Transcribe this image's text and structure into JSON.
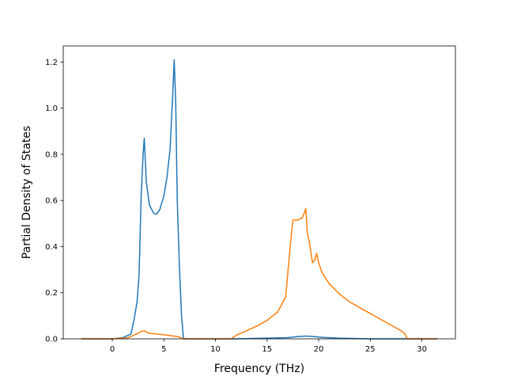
{
  "chart_data": {
    "type": "line",
    "title": "",
    "xlabel": "Frequency (THz)",
    "ylabel": "Partial Density of States",
    "xlim": [
      -4.75,
      33.25
    ],
    "ylim": [
      0,
      1.27
    ],
    "xticks": [
      0,
      5,
      10,
      15,
      20,
      25,
      30
    ],
    "xtick_labels": [
      "0",
      "5",
      "10",
      "15",
      "20",
      "25",
      "30"
    ],
    "yticks": [
      0.0,
      0.2,
      0.4,
      0.6,
      0.8,
      1.0,
      1.2
    ],
    "ytick_labels": [
      "0.0",
      "0.2",
      "0.4",
      "0.6",
      "0.8",
      "1.0",
      "1.2"
    ],
    "grid": false,
    "legend": "none",
    "series": [
      {
        "color": "#1f77b4",
        "x": [
          -3.0,
          0.0,
          1.0,
          1.8,
          2.1,
          2.4,
          2.6,
          2.8,
          3.0,
          3.1,
          3.3,
          3.6,
          4.0,
          4.3,
          4.6,
          5.0,
          5.3,
          5.6,
          5.85,
          6.0,
          6.15,
          6.3,
          6.5,
          6.7,
          6.9,
          8.0,
          12.0,
          15.0,
          17.0,
          18.0,
          18.8,
          19.5,
          20.5,
          22.0,
          25.0,
          28.0,
          31.5
        ],
        "y": [
          0.0,
          0.0,
          0.005,
          0.02,
          0.08,
          0.16,
          0.28,
          0.62,
          0.81,
          0.87,
          0.68,
          0.58,
          0.545,
          0.54,
          0.56,
          0.62,
          0.7,
          0.82,
          1.05,
          1.21,
          1.02,
          0.6,
          0.32,
          0.11,
          0.0,
          0.0,
          0.0,
          0.003,
          0.005,
          0.01,
          0.012,
          0.01,
          0.006,
          0.003,
          0.0,
          0.0,
          0.0
        ]
      },
      {
        "color": "#ff7f0e",
        "x": [
          -3.0,
          0.0,
          1.5,
          2.3,
          2.8,
          3.1,
          3.5,
          4.5,
          5.5,
          6.5,
          6.9,
          8.0,
          11.5,
          12.0,
          13.0,
          14.0,
          15.0,
          16.0,
          16.8,
          17.2,
          17.5,
          18.0,
          18.4,
          18.6,
          18.75,
          18.9,
          19.1,
          19.4,
          19.6,
          19.8,
          20.0,
          20.3,
          21.0,
          22.0,
          23.0,
          24.0,
          25.0,
          26.0,
          27.0,
          27.8,
          28.3,
          28.6,
          29.0,
          31.5
        ],
        "y": [
          0.0,
          0.0,
          0.004,
          0.02,
          0.032,
          0.035,
          0.025,
          0.02,
          0.015,
          0.008,
          0.0,
          0.0,
          0.0,
          0.015,
          0.035,
          0.055,
          0.08,
          0.115,
          0.18,
          0.38,
          0.515,
          0.515,
          0.525,
          0.545,
          0.565,
          0.46,
          0.42,
          0.33,
          0.34,
          0.37,
          0.33,
          0.29,
          0.24,
          0.195,
          0.16,
          0.135,
          0.11,
          0.085,
          0.06,
          0.04,
          0.025,
          0.0,
          0.0,
          0.0
        ]
      }
    ]
  }
}
